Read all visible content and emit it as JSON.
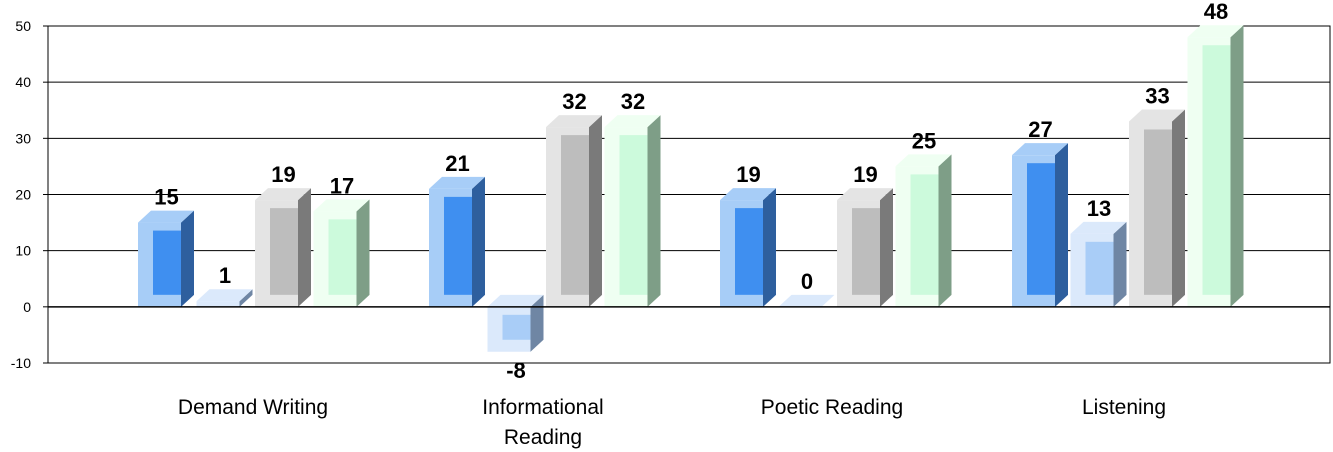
{
  "chart_data": {
    "type": "bar",
    "categories": [
      "Demand Writing",
      "Informational Reading",
      "Poetic Reading",
      "Listening"
    ],
    "category_lines": [
      [
        "Demand Writing"
      ],
      [
        "Informational",
        "Reading"
      ],
      [
        "Poetic Reading"
      ],
      [
        "Listening"
      ]
    ],
    "series": [
      {
        "values": [
          15,
          21,
          19,
          27
        ]
      },
      {
        "values": [
          1,
          -8,
          0,
          13
        ]
      },
      {
        "values": [
          19,
          32,
          19,
          33
        ]
      },
      {
        "values": [
          17,
          32,
          25,
          48
        ]
      }
    ],
    "ylim": [
      -10,
      50
    ],
    "yticks": [
      -10,
      0,
      10,
      20,
      30,
      40,
      50
    ],
    "grid": true,
    "legend": "none",
    "colors": [
      {
        "light": "#a7cdf7",
        "main": "#3f8ff0",
        "dark": "#2e5f9e"
      },
      {
        "light": "#dbe9fb",
        "main": "#a9cdf7",
        "dark": "#6f86a4"
      },
      {
        "light": "#e4e4e4",
        "main": "#bdbdbd",
        "dark": "#7a7a7a"
      },
      {
        "light": "#effff2",
        "main": "#ccfadc",
        "dark": "#7e9e87"
      }
    ]
  }
}
